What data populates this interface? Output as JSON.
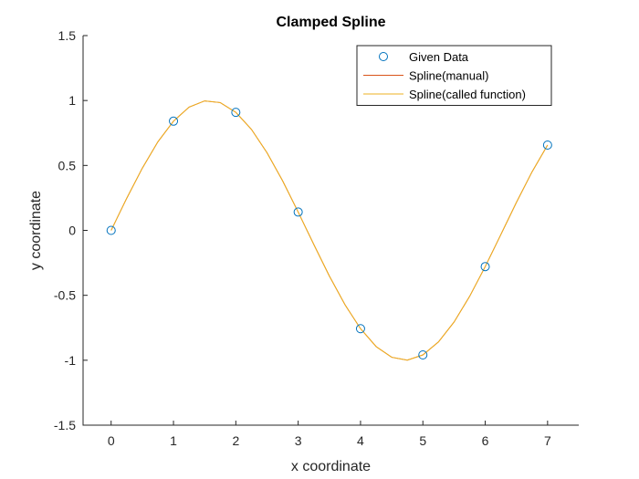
{
  "chart_data": {
    "type": "line",
    "title": "Clamped Spline",
    "xlabel": "x coordinate",
    "ylabel": "y coordinate",
    "xlim": [
      -0.45,
      7.5
    ],
    "ylim": [
      -1.5,
      1.5
    ],
    "xticks": [
      0,
      1,
      2,
      3,
      4,
      5,
      6,
      7
    ],
    "xtick_labels": [
      "0",
      "1",
      "2",
      "3",
      "4",
      "5",
      "6",
      "7"
    ],
    "yticks": [
      -1.5,
      -1,
      -0.5,
      0,
      0.5,
      1,
      1.5
    ],
    "ytick_labels": [
      "-1.5",
      "-1",
      "-0.5",
      "0",
      "0.5",
      "1",
      "1.5"
    ],
    "grid": false,
    "legend_position": "top-right",
    "series": [
      {
        "name": "Given Data",
        "kind": "markers",
        "marker": "circle",
        "color": "#0072BD",
        "x": [
          0,
          1,
          2,
          3,
          4,
          5,
          6,
          7
        ],
        "y": [
          0,
          0.841,
          0.909,
          0.141,
          -0.757,
          -0.959,
          -0.279,
          0.657
        ]
      },
      {
        "name": "Spline(manual)",
        "kind": "line",
        "color": "#D95319",
        "x": [
          0,
          0.25,
          0.5,
          0.75,
          1,
          1.25,
          1.5,
          1.75,
          2,
          2.25,
          2.5,
          2.75,
          3,
          3.25,
          3.5,
          3.75,
          4,
          4.25,
          4.5,
          4.75,
          5,
          5.25,
          5.5,
          5.75,
          6,
          6.25,
          6.5,
          6.75,
          7
        ],
        "y": [
          0,
          0.247,
          0.479,
          0.682,
          0.841,
          0.949,
          0.997,
          0.984,
          0.909,
          0.778,
          0.598,
          0.382,
          0.141,
          -0.108,
          -0.351,
          -0.572,
          -0.757,
          -0.895,
          -0.977,
          -0.999,
          -0.959,
          -0.859,
          -0.706,
          -0.508,
          -0.279,
          -0.033,
          0.215,
          0.45,
          0.657
        ]
      },
      {
        "name": "Spline(called function)",
        "kind": "line",
        "color": "#EDB120",
        "x": [
          0,
          0.25,
          0.5,
          0.75,
          1,
          1.25,
          1.5,
          1.75,
          2,
          2.25,
          2.5,
          2.75,
          3,
          3.25,
          3.5,
          3.75,
          4,
          4.25,
          4.5,
          4.75,
          5,
          5.25,
          5.5,
          5.75,
          6,
          6.25,
          6.5,
          6.75,
          7
        ],
        "y": [
          0,
          0.247,
          0.479,
          0.682,
          0.841,
          0.949,
          0.997,
          0.984,
          0.909,
          0.778,
          0.598,
          0.382,
          0.141,
          -0.108,
          -0.351,
          -0.572,
          -0.757,
          -0.895,
          -0.977,
          -0.999,
          -0.959,
          -0.859,
          -0.706,
          -0.508,
          -0.279,
          -0.033,
          0.215,
          0.45,
          0.657
        ]
      }
    ]
  }
}
